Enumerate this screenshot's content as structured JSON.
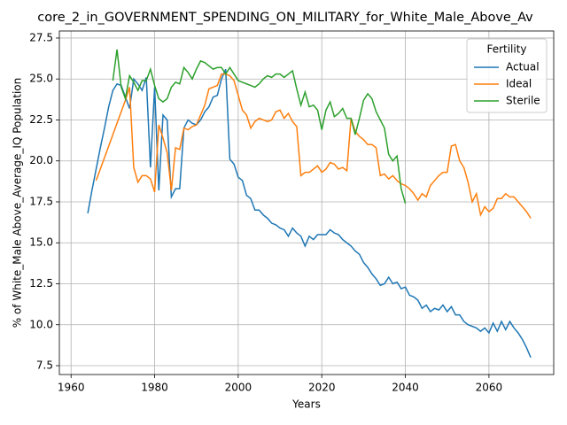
{
  "chart_data": {
    "type": "line",
    "title": "core_2_in_GOVERNMENT_SPENDING_ON_MILITARY_for_White_Male_Above_Av",
    "x_label": "Years",
    "y_label": "% of White_Male Above_Average_IQ Population",
    "legend_title": "Fertility",
    "legend": "upper right",
    "grid": true,
    "xlim": [
      1957.2,
      2075.5
    ],
    "ylim": [
      6.96,
      27.93
    ],
    "xticks": [
      1960,
      1980,
      2000,
      2020,
      2040,
      2060
    ],
    "yticks": [
      7.5,
      {
        "value": 10,
        "label": "10.0"
      },
      12.5,
      {
        "value": 15,
        "label": "15.0"
      },
      17.5,
      {
        "value": 20,
        "label": "20.0"
      },
      22.5,
      {
        "value": 25,
        "label": "25.0"
      },
      27.5
    ],
    "x": [
      1964,
      1965,
      1966,
      1967,
      1968,
      1969,
      1970,
      1971,
      1972,
      1973,
      1974,
      1975,
      1976,
      1977,
      1978,
      1979,
      1980,
      1981,
      1982,
      1983,
      1984,
      1985,
      1986,
      1987,
      1988,
      1989,
      1990,
      1991,
      1992,
      1993,
      1994,
      1995,
      1996,
      1997,
      1998,
      1999,
      2000,
      2001,
      2002,
      2003,
      2004,
      2005,
      2006,
      2007,
      2008,
      2009,
      2010,
      2011,
      2012,
      2013,
      2014,
      2015,
      2016,
      2017,
      2018,
      2019,
      2020,
      2021,
      2022,
      2023,
      2024,
      2025,
      2026,
      2027,
      2028,
      2029,
      2030,
      2031,
      2032,
      2033,
      2034,
      2035,
      2036,
      2037,
      2038,
      2039,
      2040,
      2041,
      2042,
      2043,
      2044,
      2045,
      2046,
      2047,
      2048,
      2049,
      2050,
      2051,
      2052,
      2053,
      2054,
      2055,
      2056,
      2057,
      2058,
      2059,
      2060,
      2061,
      2062,
      2063,
      2064,
      2065,
      2066,
      2067,
      2068,
      2069,
      2070
    ],
    "series": [
      {
        "name": "Actual",
        "color": "#1f77b4",
        "values": [
          16.8,
          18.2,
          19.5,
          20.8,
          22.0,
          23.3,
          24.3,
          24.7,
          24.6,
          23.9,
          23.2,
          25.0,
          24.7,
          24.3,
          25.1,
          19.6,
          24.5,
          18.2,
          22.8,
          22.5,
          17.8,
          18.3,
          18.3,
          22.0,
          22.5,
          22.3,
          22.2,
          22.5,
          23.0,
          23.3,
          23.9,
          24.0,
          25.0,
          25.6,
          20.1,
          19.8,
          19.0,
          18.8,
          17.9,
          17.7,
          17.0,
          17.0,
          16.7,
          16.5,
          16.2,
          16.1,
          15.9,
          15.8,
          15.4,
          15.9,
          15.6,
          15.4,
          14.8,
          15.4,
          15.2,
          15.5,
          15.5,
          15.5,
          15.8,
          15.6,
          15.5,
          15.2,
          15.0,
          14.8,
          14.5,
          14.3,
          13.8,
          13.5,
          13.1,
          12.8,
          12.4,
          12.5,
          12.9,
          12.5,
          12.6,
          12.2,
          12.3,
          11.8,
          11.7,
          11.5,
          11.0,
          11.2,
          10.8,
          11.0,
          10.9,
          11.2,
          10.8,
          11.1,
          10.6,
          10.6,
          10.2,
          10.0,
          9.9,
          9.8,
          9.6,
          9.8,
          9.5,
          10.1,
          9.6,
          10.2,
          9.7,
          10.2,
          9.8,
          9.5,
          9.1,
          8.6,
          8.0
        ]
      },
      {
        "name": "Ideal",
        "color": "#ff7f0e",
        "values": [
          null,
          null,
          18.8,
          19.5,
          20.2,
          20.9,
          21.6,
          22.3,
          23.0,
          23.7,
          24.5,
          19.6,
          18.7,
          19.1,
          19.1,
          18.9,
          18.1,
          22.2,
          21.4,
          20.5,
          18.2,
          20.8,
          20.7,
          22.0,
          21.9,
          22.1,
          22.2,
          22.8,
          23.4,
          24.4,
          24.5,
          24.6,
          25.3,
          25.3,
          25.2,
          24.9,
          24.0,
          23.1,
          22.8,
          22.0,
          22.4,
          22.6,
          22.5,
          22.4,
          22.5,
          23.0,
          23.1,
          22.6,
          22.9,
          22.4,
          22.1,
          19.1,
          19.3,
          19.3,
          19.5,
          19.7,
          19.3,
          19.5,
          19.9,
          19.8,
          19.5,
          19.6,
          19.4,
          22.6,
          21.8,
          21.5,
          21.3,
          21.0,
          21.0,
          20.8,
          19.1,
          19.2,
          18.9,
          19.1,
          18.8,
          18.6,
          18.5,
          18.3,
          18.0,
          17.6,
          18.0,
          17.8,
          18.5,
          18.8,
          19.1,
          19.3,
          19.3,
          20.9,
          21.0,
          20.0,
          19.6,
          18.7,
          17.5,
          18.0,
          16.7,
          17.2,
          16.9,
          17.1,
          17.7,
          17.7,
          18.0,
          17.8,
          17.8,
          17.5,
          17.2,
          16.9,
          16.5
        ]
      },
      {
        "name": "Sterile",
        "color": "#2ca02c",
        "values": [
          null,
          null,
          null,
          null,
          null,
          null,
          24.9,
          26.8,
          24.5,
          23.8,
          25.2,
          24.8,
          24.3,
          24.9,
          24.9,
          25.6,
          24.6,
          23.8,
          23.6,
          23.8,
          24.5,
          24.8,
          24.7,
          25.7,
          25.4,
          25.0,
          25.6,
          26.1,
          26.0,
          25.8,
          25.6,
          25.7,
          25.7,
          25.3,
          25.7,
          25.3,
          24.9,
          24.8,
          24.7,
          24.6,
          24.5,
          24.7,
          25.0,
          25.2,
          25.1,
          25.3,
          25.3,
          25.1,
          25.3,
          25.5,
          24.4,
          23.4,
          24.2,
          23.3,
          23.4,
          23.1,
          21.9,
          23.1,
          23.6,
          22.7,
          22.9,
          23.2,
          22.6,
          22.6,
          21.6,
          22.6,
          23.7,
          24.1,
          23.8,
          23.0,
          22.5,
          22.0,
          20.4,
          20.0,
          20.3,
          18.3,
          17.4,
          null,
          null,
          null,
          null,
          null,
          null,
          null,
          null,
          null,
          null,
          null,
          null,
          null,
          null,
          null,
          null,
          null,
          null,
          null,
          null,
          null,
          null,
          null,
          null,
          null,
          null,
          null,
          null,
          null,
          null
        ]
      }
    ]
  }
}
